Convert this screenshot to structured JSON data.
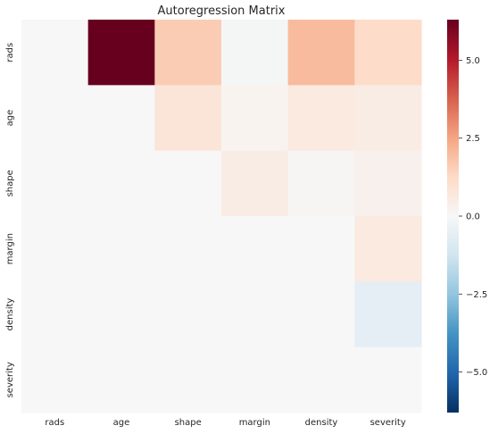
{
  "chart_data": {
    "type": "heatmap",
    "title": "Autoregression Matrix",
    "xlabel": "",
    "ylabel": "",
    "x_categories": [
      "rads",
      "age",
      "shape",
      "margin",
      "density",
      "severity"
    ],
    "y_categories": [
      "rads",
      "age",
      "shape",
      "margin",
      "density",
      "severity"
    ],
    "values": [
      [
        0,
        6.3,
        1.6,
        -0.1,
        2.0,
        1.2
      ],
      [
        0,
        0,
        0.8,
        0.2,
        0.6,
        0.5
      ],
      [
        0,
        0,
        0,
        0.5,
        0.1,
        0.3
      ],
      [
        0,
        0,
        0,
        0,
        0,
        0.6
      ],
      [
        0,
        0,
        0,
        0,
        0,
        -0.6
      ],
      [
        0,
        0,
        0,
        0,
        0,
        0
      ]
    ],
    "colorbar": {
      "range": [
        -6.3,
        6.3
      ],
      "ticks": [
        -5.0,
        -2.5,
        0.0,
        2.5,
        5.0
      ],
      "tick_labels": [
        "−5.0",
        "−2.5",
        "0.0",
        "2.5",
        "5.0"
      ],
      "colormap": "RdBu_r",
      "stops": [
        "#053061",
        "#2166ac",
        "#4393c3",
        "#92c5de",
        "#d1e5f0",
        "#f7f7f7",
        "#fddbc7",
        "#f4a582",
        "#d6604d",
        "#b2182b",
        "#67001f"
      ]
    },
    "grid": false
  }
}
